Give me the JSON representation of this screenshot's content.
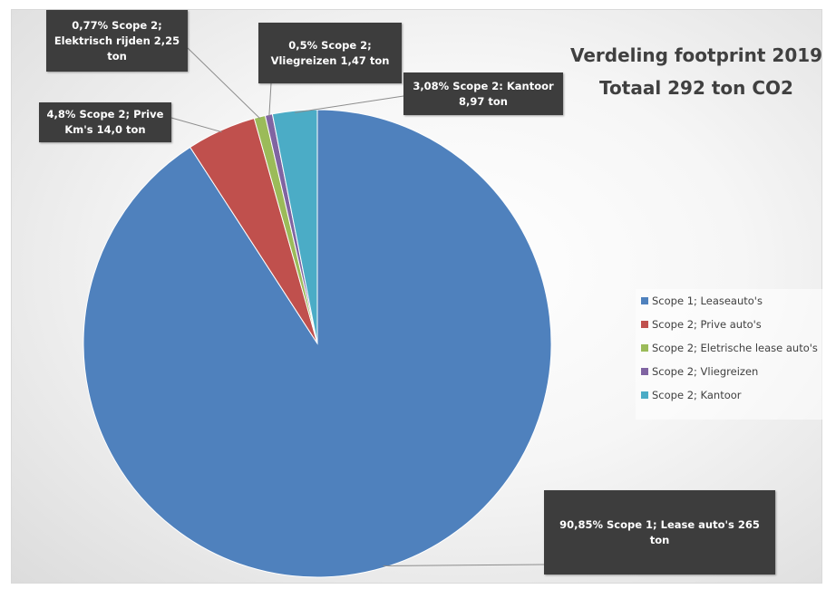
{
  "chart_data": {
    "type": "pie",
    "title_lines": [
      "Verdeling footprint 2019",
      "Totaal 292 ton CO2"
    ],
    "legend_position": "right",
    "slices": [
      {
        "name": "Scope 1; Leaseauto's",
        "percent": 90.85,
        "color": "#4f81bd",
        "label": "90,85% Scope 1; Lease auto's 265 ton"
      },
      {
        "name": "Scope 2; Prive auto's",
        "percent": 4.8,
        "color": "#c0504d",
        "label": "4,8% Scope 2; Prive Km's 14,0 ton"
      },
      {
        "name": "Scope 2; Eletrische lease auto's",
        "percent": 0.77,
        "color": "#9bbb59",
        "label": "0,77% Scope 2; Elektrisch rijden 2,25 ton"
      },
      {
        "name": "Scope 2; Vliegreizen",
        "percent": 0.5,
        "color": "#8064a2",
        "label": "0,5% Scope 2; Vliegreizen 1,47 ton"
      },
      {
        "name": "Scope 2; Kantoor",
        "percent": 3.08,
        "color": "#4bacc6",
        "label": "3,08% Scope 2: Kantoor 8,97 ton"
      }
    ]
  }
}
